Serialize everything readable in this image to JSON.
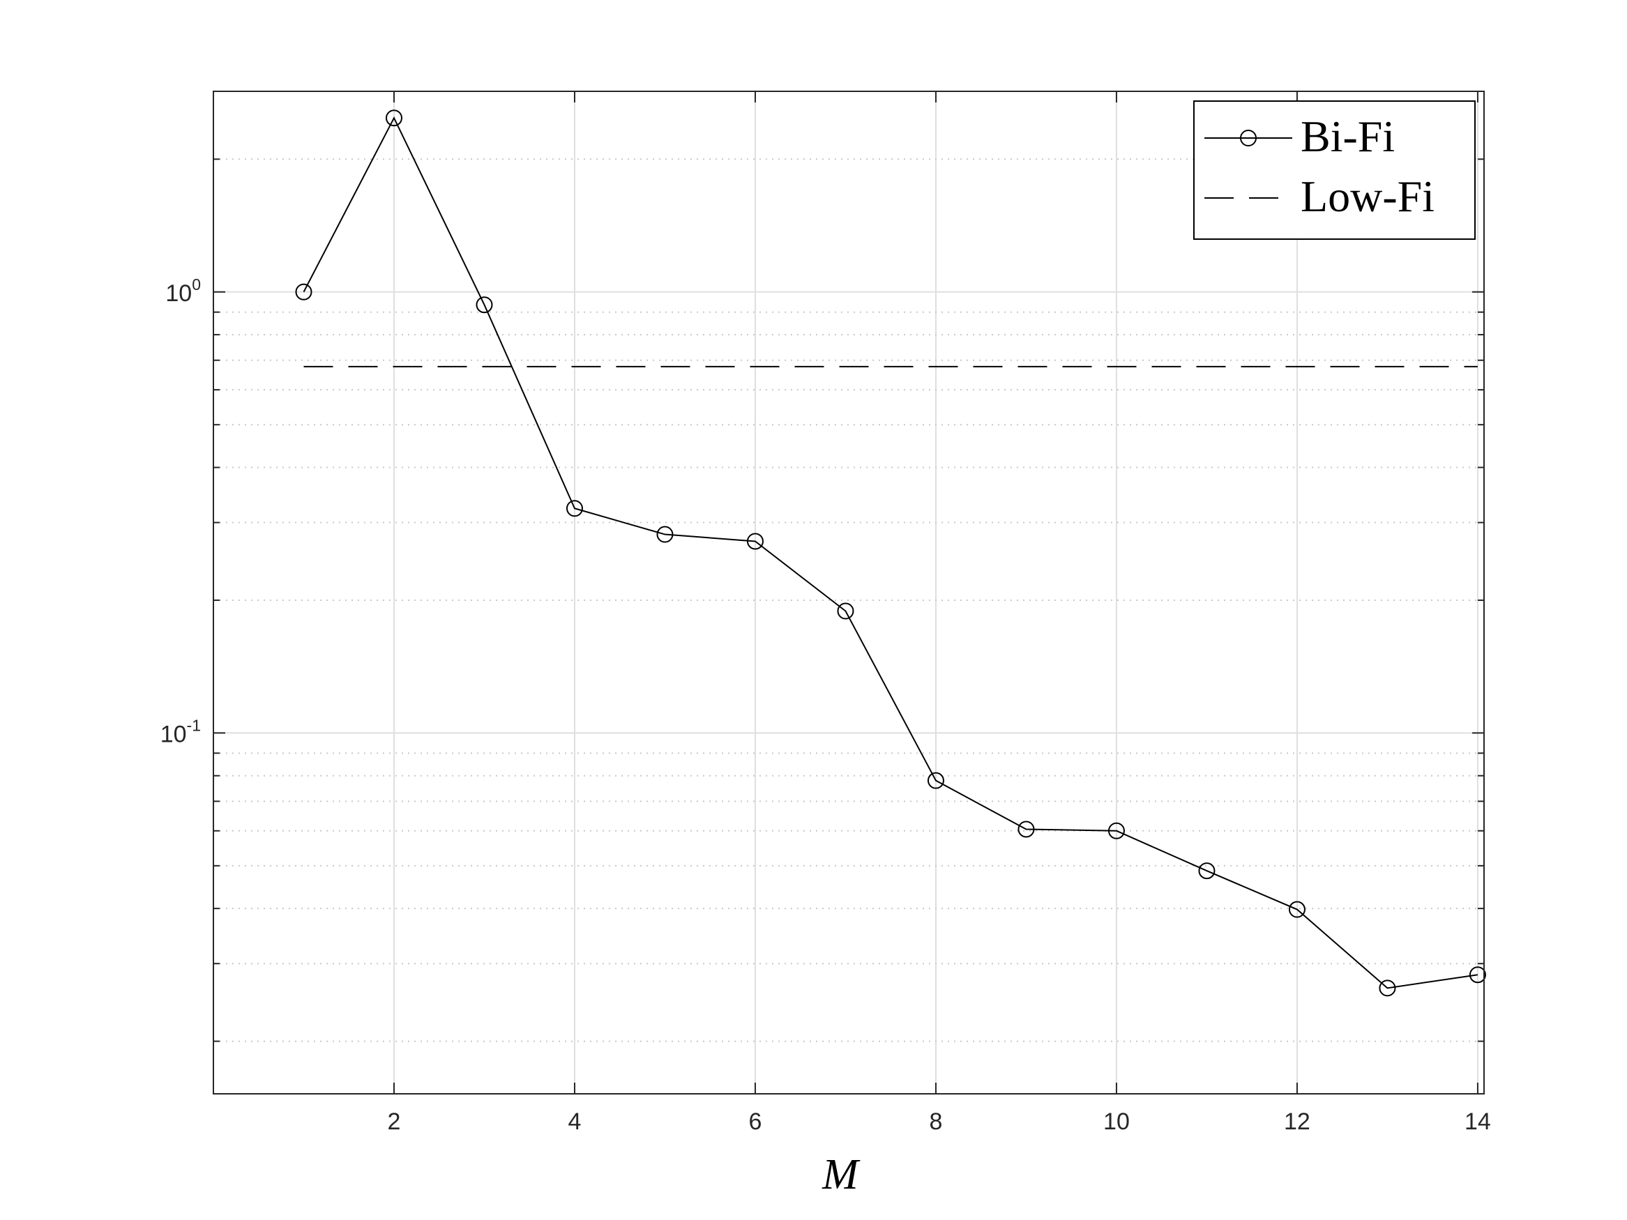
{
  "chart_data": {
    "type": "line",
    "xlabel": "M",
    "ylabel": "",
    "xlim": [
      0.0,
      14.07
    ],
    "ylim": [
      0.0152,
      2.85
    ],
    "yscale": "log",
    "grid": true,
    "minor_grid": true,
    "legend_location": "top-right",
    "xticks": [
      2,
      4,
      6,
      8,
      10,
      12,
      14
    ],
    "xtick_labels": [
      "2",
      "4",
      "6",
      "8",
      "10",
      "12",
      "14"
    ],
    "yticks": [
      {
        "value": 1,
        "base": "10",
        "exp": "0"
      },
      {
        "value": 0.1,
        "base": "10",
        "exp": "-1"
      }
    ],
    "series": [
      {
        "name": "Bi-Fi",
        "style": "solid-circle-markers",
        "color": "#000000",
        "x": [
          1,
          2,
          3,
          4,
          5,
          6,
          7,
          8,
          9,
          10,
          11,
          12,
          13,
          14
        ],
        "y": [
          1.0,
          2.48,
          0.935,
          0.323,
          0.282,
          0.272,
          0.189,
          0.078,
          0.0605,
          0.06,
          0.0487,
          0.0398,
          0.0264,
          0.0283
        ]
      },
      {
        "name": "Low-Fi",
        "style": "dashed",
        "color": "#000000",
        "x": [
          1,
          14
        ],
        "y": [
          0.677,
          0.677
        ]
      }
    ]
  }
}
